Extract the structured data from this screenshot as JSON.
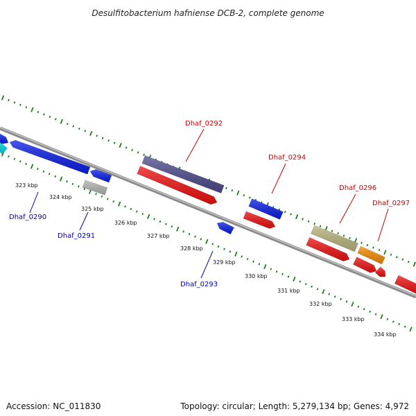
{
  "title": "Desulfitobacterium hafniense DCB-2, complete genome",
  "footer": {
    "accession": "Accession: NC_011830",
    "summary": "Topology: circular; Length: 5,279,134 bp; Genes: 4,972"
  },
  "colors": {
    "backbone": "#8c8c8c",
    "tick": "#1e7a1e",
    "forward_label": "#cc0000",
    "reverse_label": "#0000aa"
  },
  "tick_labels": [
    {
      "kbp": 323,
      "label": "323 kbp"
    },
    {
      "kbp": 324,
      "label": "324 kbp"
    },
    {
      "kbp": 325,
      "label": "325 kbp"
    },
    {
      "kbp": 326,
      "label": "326 kbp"
    },
    {
      "kbp": 327,
      "label": "327 kbp"
    },
    {
      "kbp": 328,
      "label": "328 kbp"
    },
    {
      "kbp": 329,
      "label": "329 kbp"
    },
    {
      "kbp": 330,
      "label": "330 kbp"
    },
    {
      "kbp": 331,
      "label": "331 kbp"
    },
    {
      "kbp": 332,
      "label": "332 kbp"
    },
    {
      "kbp": 333,
      "label": "333 kbp"
    },
    {
      "kbp": 334,
      "label": "334 kbp"
    }
  ],
  "gene_labels": [
    {
      "id": "Dhaf_0290",
      "strand": "reverse"
    },
    {
      "id": "Dhaf_0291",
      "strand": "reverse"
    },
    {
      "id": "Dhaf_0292",
      "strand": "forward"
    },
    {
      "id": "Dhaf_0293",
      "strand": "reverse"
    },
    {
      "id": "Dhaf_0294",
      "strand": "forward"
    },
    {
      "id": "Dhaf_0296",
      "strand": "forward"
    },
    {
      "id": "Dhaf_0297",
      "strand": "forward"
    }
  ],
  "features": [
    {
      "name": "cyan-gene",
      "color": "#00d8e0"
    },
    {
      "name": "blue-gene",
      "color": "#0a1ee6"
    },
    {
      "name": "grey-gene",
      "color": "#b4b4b4"
    },
    {
      "name": "slate-gene",
      "color": "#4e4a8e"
    },
    {
      "name": "red-gene",
      "color": "#ee1111"
    },
    {
      "name": "olive-gene",
      "color": "#b8b47c"
    },
    {
      "name": "orange-gene",
      "color": "#f28a00"
    }
  ]
}
